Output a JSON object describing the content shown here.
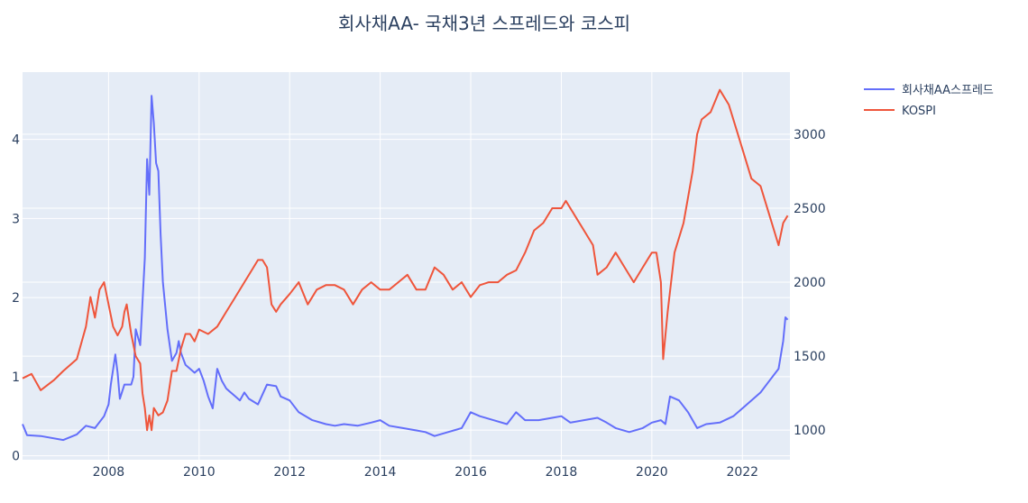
{
  "chart_data": {
    "type": "line",
    "title": "회사채AA- 국채3년 스프레드와 코스피",
    "xlabel": "",
    "ylabel": "",
    "y2label": "",
    "xlim": [
      2006.1,
      2023.05
    ],
    "ylim": [
      -0.05,
      4.85
    ],
    "y2lim": [
      800,
      3420
    ],
    "x_ticks": [
      2008,
      2010,
      2012,
      2014,
      2016,
      2018,
      2020,
      2022
    ],
    "x_tick_labels": [
      "2008",
      "2010",
      "2012",
      "2014",
      "2016",
      "2018",
      "2020",
      "2022"
    ],
    "y_ticks": [
      0,
      1,
      2,
      3,
      4
    ],
    "y_tick_labels": [
      "0",
      "1",
      "2",
      "3",
      "4"
    ],
    "y2_ticks": [
      1000,
      1500,
      2000,
      2500,
      3000
    ],
    "y2_tick_labels": [
      "1000",
      "1500",
      "2000",
      "2500",
      "3000"
    ],
    "grid": true,
    "legend_position": "top-right outside",
    "series": [
      {
        "name": "회사채AA스프레드",
        "axis": "left",
        "color": "#636efa",
        "x": [
          2006.1,
          2006.2,
          2006.5,
          2007.0,
          2007.3,
          2007.5,
          2007.7,
          2007.9,
          2008.0,
          2008.05,
          2008.15,
          2008.2,
          2008.25,
          2008.35,
          2008.5,
          2008.55,
          2008.6,
          2008.7,
          2008.8,
          2008.85,
          2008.9,
          2008.95,
          2009.0,
          2009.05,
          2009.1,
          2009.15,
          2009.2,
          2009.3,
          2009.4,
          2009.5,
          2009.55,
          2009.6,
          2009.7,
          2009.8,
          2009.9,
          2010.0,
          2010.1,
          2010.2,
          2010.3,
          2010.4,
          2010.5,
          2010.6,
          2010.7,
          2010.8,
          2010.9,
          2011.0,
          2011.1,
          2011.3,
          2011.5,
          2011.7,
          2011.8,
          2012.0,
          2012.2,
          2012.5,
          2012.8,
          2013.0,
          2013.2,
          2013.5,
          2013.8,
          2014.0,
          2014.2,
          2014.5,
          2014.8,
          2015.0,
          2015.2,
          2015.5,
          2015.8,
          2016.0,
          2016.2,
          2016.5,
          2016.8,
          2017.0,
          2017.2,
          2017.5,
          2017.8,
          2018.0,
          2018.2,
          2018.5,
          2018.8,
          2019.0,
          2019.2,
          2019.5,
          2019.8,
          2020.0,
          2020.2,
          2020.3,
          2020.4,
          2020.6,
          2020.8,
          2021.0,
          2021.2,
          2021.5,
          2021.8,
          2022.0,
          2022.2,
          2022.4,
          2022.6,
          2022.8,
          2022.9,
          2022.95,
          2023.0
        ],
        "values": [
          0.4,
          0.26,
          0.25,
          0.2,
          0.27,
          0.38,
          0.35,
          0.5,
          0.65,
          0.9,
          1.28,
          1.05,
          0.72,
          0.9,
          0.9,
          1.0,
          1.6,
          1.4,
          2.5,
          3.75,
          3.3,
          4.55,
          4.2,
          3.7,
          3.6,
          2.8,
          2.2,
          1.6,
          1.2,
          1.3,
          1.45,
          1.3,
          1.15,
          1.1,
          1.05,
          1.1,
          0.95,
          0.75,
          0.6,
          1.1,
          0.95,
          0.85,
          0.8,
          0.75,
          0.7,
          0.8,
          0.72,
          0.65,
          0.9,
          0.88,
          0.75,
          0.7,
          0.55,
          0.45,
          0.4,
          0.38,
          0.4,
          0.38,
          0.42,
          0.45,
          0.38,
          0.35,
          0.32,
          0.3,
          0.25,
          0.3,
          0.35,
          0.55,
          0.5,
          0.45,
          0.4,
          0.55,
          0.45,
          0.45,
          0.48,
          0.5,
          0.42,
          0.45,
          0.48,
          0.42,
          0.35,
          0.3,
          0.35,
          0.42,
          0.45,
          0.4,
          0.75,
          0.7,
          0.55,
          0.35,
          0.4,
          0.42,
          0.5,
          0.6,
          0.7,
          0.8,
          0.95,
          1.1,
          1.45,
          1.75,
          1.72
        ]
      },
      {
        "name": "KOSPI",
        "axis": "right",
        "color": "#ef553b",
        "x": [
          2006.1,
          2006.3,
          2006.5,
          2006.8,
          2007.0,
          2007.3,
          2007.5,
          2007.6,
          2007.7,
          2007.8,
          2007.9,
          2008.0,
          2008.1,
          2008.2,
          2008.3,
          2008.35,
          2008.4,
          2008.5,
          2008.6,
          2008.7,
          2008.75,
          2008.8,
          2008.85,
          2008.9,
          2008.95,
          2009.0,
          2009.1,
          2009.2,
          2009.3,
          2009.4,
          2009.5,
          2009.6,
          2009.7,
          2009.8,
          2009.9,
          2010.0,
          2010.2,
          2010.4,
          2010.6,
          2010.8,
          2011.0,
          2011.2,
          2011.3,
          2011.4,
          2011.5,
          2011.6,
          2011.7,
          2011.8,
          2012.0,
          2012.2,
          2012.4,
          2012.6,
          2012.8,
          2013.0,
          2013.2,
          2013.4,
          2013.6,
          2013.8,
          2014.0,
          2014.2,
          2014.4,
          2014.6,
          2014.8,
          2015.0,
          2015.2,
          2015.4,
          2015.6,
          2015.8,
          2016.0,
          2016.2,
          2016.4,
          2016.6,
          2016.8,
          2017.0,
          2017.2,
          2017.4,
          2017.6,
          2017.8,
          2018.0,
          2018.1,
          2018.3,
          2018.5,
          2018.7,
          2018.8,
          2019.0,
          2019.2,
          2019.4,
          2019.6,
          2019.8,
          2020.0,
          2020.1,
          2020.2,
          2020.25,
          2020.35,
          2020.5,
          2020.7,
          2020.9,
          2021.0,
          2021.1,
          2021.3,
          2021.5,
          2021.7,
          2021.9,
          2022.0,
          2022.2,
          2022.4,
          2022.6,
          2022.8,
          2022.9,
          2023.0
        ],
        "values": [
          1350,
          1380,
          1270,
          1340,
          1400,
          1480,
          1700,
          1900,
          1760,
          1950,
          2000,
          1850,
          1700,
          1640,
          1700,
          1800,
          1850,
          1650,
          1500,
          1450,
          1250,
          1150,
          1000,
          1100,
          1000,
          1150,
          1100,
          1120,
          1200,
          1400,
          1400,
          1550,
          1650,
          1650,
          1600,
          1680,
          1650,
          1700,
          1800,
          1900,
          2000,
          2100,
          2150,
          2150,
          2100,
          1850,
          1800,
          1850,
          1920,
          2000,
          1850,
          1950,
          1980,
          1980,
          1950,
          1850,
          1950,
          2000,
          1950,
          1950,
          2000,
          2050,
          1950,
          1950,
          2100,
          2050,
          1950,
          2000,
          1900,
          1980,
          2000,
          2000,
          2050,
          2080,
          2200,
          2350,
          2400,
          2500,
          2500,
          2550,
          2450,
          2350,
          2250,
          2050,
          2100,
          2200,
          2100,
          2000,
          2100,
          2200,
          2200,
          2000,
          1480,
          1800,
          2200,
          2400,
          2750,
          3000,
          3100,
          3150,
          3300,
          3200,
          3000,
          2900,
          2700,
          2650,
          2450,
          2250,
          2400,
          2450
        ]
      }
    ]
  }
}
